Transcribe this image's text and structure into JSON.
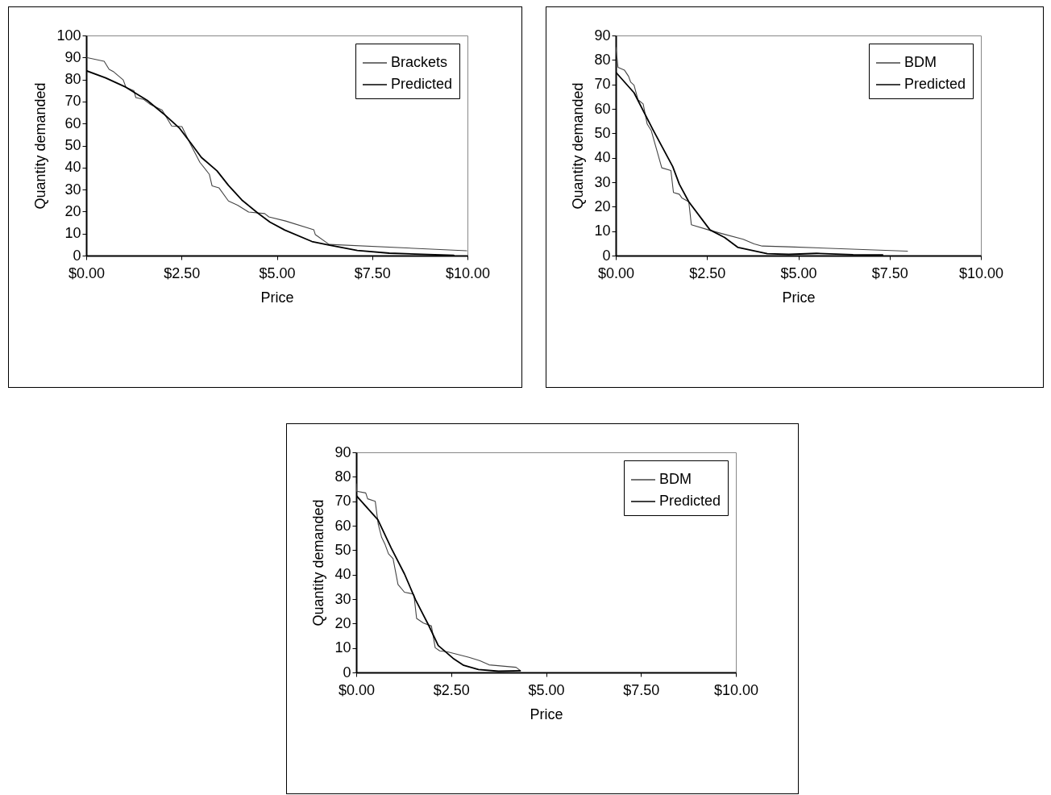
{
  "chart_data": [
    {
      "type": "line",
      "xlabel": "Price",
      "ylabel": "Quantity demanded",
      "xlim": [
        0,
        10
      ],
      "xticks": [
        {
          "value": 0,
          "label": "$0.00"
        },
        {
          "value": 2.5,
          "label": "$2.50"
        },
        {
          "value": 5,
          "label": "$5.00"
        },
        {
          "value": 7.5,
          "label": "$7.50"
        },
        {
          "value": 10,
          "label": "$10.00"
        }
      ],
      "ylim": [
        0,
        100
      ],
      "yticks": [
        0,
        10,
        20,
        30,
        40,
        50,
        60,
        70,
        80,
        90,
        100
      ],
      "grid": false,
      "legend": "top right",
      "series": [
        {
          "name": "Brackets",
          "color": "#444444",
          "x": [
            0,
            0.47,
            0.6,
            0.72,
            0.97,
            1.04,
            1.25,
            1.3,
            1.5,
            1.67,
            1.99,
            2.24,
            2.51,
            2.73,
            2.98,
            3.23,
            3.3,
            3.48,
            3.73,
            3.97,
            4.26,
            4.68,
            4.79,
            5.23,
            5.97,
            6.01,
            6.37,
            9.98
          ],
          "values": [
            90,
            88.3,
            84.6,
            83.5,
            79.8,
            76.5,
            74.9,
            71.8,
            71,
            68.8,
            66.1,
            58.9,
            58.6,
            50.7,
            42.4,
            36.9,
            31.7,
            30.8,
            24.8,
            22.9,
            19.8,
            19.1,
            17.6,
            15.7,
            11.7,
            9.5,
            5.1,
            2.2
          ]
        },
        {
          "name": "Predicted",
          "color": "#000000",
          "x": [
            0,
            0.51,
            1.04,
            1.6,
            2.03,
            2.45,
            2.74,
            3.02,
            3.43,
            3.73,
            4.08,
            4.5,
            4.82,
            5.21,
            5.92,
            6.36,
            7.11,
            7.95,
            9.64
          ],
          "values": [
            84,
            80.7,
            76.5,
            70.5,
            64.4,
            57.8,
            51.2,
            44.6,
            38.5,
            31.9,
            25.3,
            19.3,
            15.2,
            11.6,
            6.4,
            4.8,
            2.3,
            1.1,
            0.1
          ]
        }
      ]
    },
    {
      "type": "line",
      "xlabel": "Price",
      "ylabel": "Quantity demanded",
      "xlim": [
        0,
        10
      ],
      "xticks": [
        {
          "value": 0,
          "label": "$0.00"
        },
        {
          "value": 2.5,
          "label": "$2.50"
        },
        {
          "value": 5,
          "label": "$5.00"
        },
        {
          "value": 7.5,
          "label": "$7.50"
        },
        {
          "value": 10,
          "label": "$10.00"
        }
      ],
      "ylim": [
        0,
        90
      ],
      "yticks": [
        0,
        10,
        20,
        30,
        40,
        50,
        60,
        70,
        80,
        90
      ],
      "grid": false,
      "legend": "top right",
      "series": [
        {
          "name": "BDM",
          "color": "#444444",
          "x": [
            0,
            0.04,
            0.06,
            0.24,
            0.35,
            0.41,
            0.5,
            0.61,
            0.75,
            0.86,
            0.97,
            1.26,
            1.51,
            1.58,
            1.74,
            1.81,
            2.0,
            2.07,
            2.54,
            2.98,
            3.49,
            3.79,
            4.01,
            4.74,
            7.99
          ],
          "values": [
            85.2,
            80.1,
            77,
            75.8,
            73.3,
            70.9,
            69.7,
            63.7,
            62,
            53.8,
            51.2,
            35.9,
            34.8,
            25.8,
            25.1,
            23.6,
            22,
            12.6,
            10.5,
            8.7,
            6.7,
            4.8,
            3.9,
            3.6,
            1.8
          ]
        },
        {
          "name": "Predicted",
          "color": "#000000",
          "x": [
            0,
            0.5,
            1.01,
            1.56,
            1.74,
            2.0,
            2.58,
            2.98,
            3.35,
            4.15,
            4.74,
            5.5,
            6.5,
            7.31
          ],
          "values": [
            75,
            66.6,
            51.7,
            36.4,
            29.2,
            22,
            10.5,
            7.4,
            3.3,
            0.8,
            0.5,
            0.9,
            0.4,
            0.3
          ]
        }
      ]
    },
    {
      "type": "line",
      "xlabel": "Price",
      "ylabel": "Quantity demanded",
      "xlim": [
        0,
        10
      ],
      "xticks": [
        {
          "value": 0,
          "label": "$0.00"
        },
        {
          "value": 2.5,
          "label": "$2.50"
        },
        {
          "value": 5,
          "label": "$5.00"
        },
        {
          "value": 7.5,
          "label": "$7.50"
        },
        {
          "value": 10,
          "label": "$10.00"
        }
      ],
      "ylim": [
        0,
        90
      ],
      "yticks": [
        0,
        10,
        20,
        30,
        40,
        50,
        60,
        70,
        80,
        90
      ],
      "grid": false,
      "legend": "top right",
      "series": [
        {
          "name": "BDM",
          "color": "#444444",
          "x": [
            0,
            0.01,
            0.25,
            0.3,
            0.5,
            0.58,
            0.67,
            0.76,
            0.85,
            0.97,
            1.1,
            1.27,
            1.49,
            1.52,
            1.59,
            1.77,
            1.98,
            2.08,
            2.2,
            2.41,
            2.97,
            3.26,
            3.5,
            4.21,
            4.32
          ],
          "values": [
            77.1,
            74.1,
            73.4,
            71,
            70,
            60.5,
            55.2,
            52.3,
            48.5,
            46.5,
            36,
            32.8,
            32.1,
            31.7,
            22.1,
            20.2,
            19,
            10.1,
            8.8,
            8.4,
            6.2,
            4.8,
            3.1,
            2.1,
            0.8
          ]
        },
        {
          "name": "Predicted",
          "color": "#000000",
          "x": [
            0,
            0.57,
            0.92,
            1.27,
            1.56,
            1.91,
            2.16,
            2.55,
            2.83,
            3.22,
            3.75,
            4.32
          ],
          "values": [
            72.3,
            62.4,
            50.9,
            40.3,
            29.8,
            19.2,
            11,
            5.8,
            2.9,
            1.2,
            0.5,
            0.7
          ]
        }
      ]
    }
  ]
}
